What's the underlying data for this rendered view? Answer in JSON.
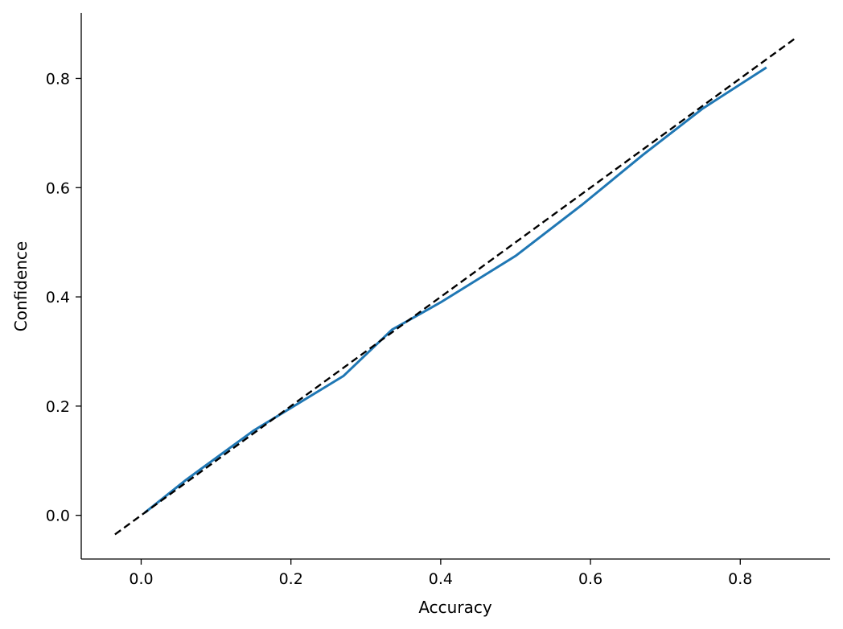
{
  "chart_data": {
    "type": "line",
    "xlabel": "Accuracy",
    "ylabel": "Confidence",
    "xlim": [
      -0.08,
      0.92
    ],
    "ylim": [
      -0.08,
      0.92
    ],
    "xticks": [
      0.0,
      0.2,
      0.4,
      0.6,
      0.8
    ],
    "yticks": [
      0.0,
      0.2,
      0.4,
      0.6,
      0.8
    ],
    "xtick_labels": [
      "0.0",
      "0.2",
      "0.4",
      "0.6",
      "0.8"
    ],
    "ytick_labels": [
      "0.0",
      "0.2",
      "0.4",
      "0.6",
      "0.8"
    ],
    "grid": false,
    "series": [
      {
        "color": "#1f77b4",
        "style": "solid",
        "x": [
          0.005,
          0.06,
          0.15,
          0.21,
          0.27,
          0.335,
          0.4,
          0.5,
          0.59,
          0.67,
          0.75,
          0.835
        ],
        "y": [
          0.005,
          0.065,
          0.155,
          0.205,
          0.255,
          0.34,
          0.39,
          0.475,
          0.57,
          0.66,
          0.745,
          0.82
        ]
      },
      {
        "color": "#000000",
        "style": "dashed",
        "x": [
          -0.035,
          0.875
        ],
        "y": [
          -0.035,
          0.875
        ]
      }
    ]
  }
}
